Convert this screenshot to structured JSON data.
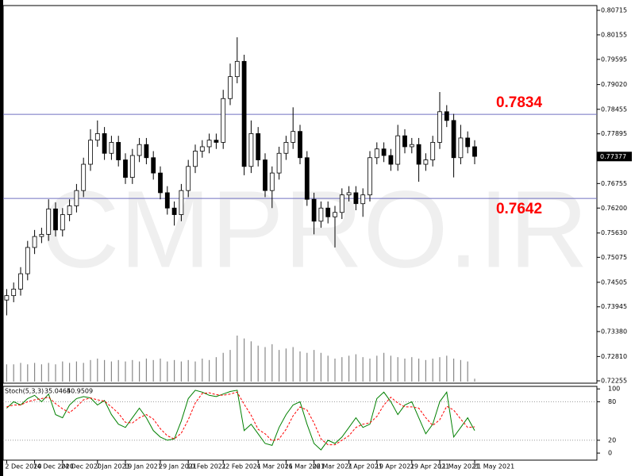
{
  "chart_data": [
    {
      "type": "candlestick",
      "watermark": "CMPRO.IR",
      "open": [
        0.741,
        0.742,
        0.7435,
        0.747,
        0.753,
        0.7555,
        0.756,
        0.7618,
        0.757,
        0.7605,
        0.7625,
        0.766,
        0.772,
        0.7775,
        0.779,
        0.7745,
        0.777,
        0.773,
        0.769,
        0.774,
        0.7765,
        0.7735,
        0.77,
        0.7655,
        0.762,
        0.7605,
        0.766,
        0.7715,
        0.775,
        0.776,
        0.7775,
        0.777,
        0.787,
        0.792,
        0.7955,
        0.7715,
        0.779,
        0.773,
        0.766,
        0.77,
        0.7745,
        0.777,
        0.7795,
        0.7735,
        0.764,
        0.759,
        0.762,
        0.76,
        0.761,
        0.765,
        0.7655,
        0.763,
        0.765,
        0.7735,
        0.7755,
        0.774,
        0.772,
        0.7785,
        0.776,
        0.7765,
        0.772,
        0.773,
        0.777,
        0.784,
        0.782,
        0.7735,
        0.778,
        0.776
      ],
      "high": [
        0.7435,
        0.745,
        0.7485,
        0.7545,
        0.757,
        0.7575,
        0.764,
        0.7633,
        0.762,
        0.764,
        0.7675,
        0.7735,
        0.78,
        0.782,
        0.7805,
        0.7785,
        0.7785,
        0.7745,
        0.7755,
        0.778,
        0.778,
        0.775,
        0.7715,
        0.767,
        0.7635,
        0.7675,
        0.773,
        0.7765,
        0.7775,
        0.779,
        0.779,
        0.789,
        0.795,
        0.801,
        0.797,
        0.782,
        0.7805,
        0.7745,
        0.7715,
        0.776,
        0.7785,
        0.785,
        0.781,
        0.775,
        0.7655,
        0.7635,
        0.7635,
        0.7625,
        0.7665,
        0.767,
        0.767,
        0.7665,
        0.775,
        0.777,
        0.777,
        0.7755,
        0.781,
        0.78,
        0.778,
        0.778,
        0.7745,
        0.7785,
        0.7885,
        0.7855,
        0.7835,
        0.781,
        0.7795,
        0.7775
      ],
      "low": [
        0.7375,
        0.7405,
        0.742,
        0.7455,
        0.7515,
        0.754,
        0.7545,
        0.7555,
        0.7555,
        0.759,
        0.761,
        0.7645,
        0.7705,
        0.776,
        0.773,
        0.773,
        0.7715,
        0.7675,
        0.7675,
        0.7725,
        0.772,
        0.7685,
        0.764,
        0.7605,
        0.758,
        0.759,
        0.7645,
        0.77,
        0.7735,
        0.7745,
        0.7755,
        0.7755,
        0.7855,
        0.7905,
        0.7695,
        0.77,
        0.7715,
        0.7645,
        0.762,
        0.7685,
        0.773,
        0.7755,
        0.772,
        0.7625,
        0.756,
        0.7575,
        0.7585,
        0.753,
        0.7595,
        0.7635,
        0.7615,
        0.76,
        0.7635,
        0.772,
        0.7725,
        0.7705,
        0.7705,
        0.7745,
        0.7745,
        0.768,
        0.7705,
        0.7715,
        0.7755,
        0.7805,
        0.769,
        0.772,
        0.7745,
        0.772
      ],
      "close": [
        0.742,
        0.7435,
        0.747,
        0.753,
        0.7555,
        0.756,
        0.7618,
        0.757,
        0.7605,
        0.7625,
        0.766,
        0.772,
        0.7775,
        0.779,
        0.7745,
        0.777,
        0.773,
        0.769,
        0.774,
        0.7765,
        0.7735,
        0.77,
        0.7655,
        0.762,
        0.7605,
        0.766,
        0.7715,
        0.775,
        0.776,
        0.7775,
        0.777,
        0.787,
        0.792,
        0.7955,
        0.7715,
        0.779,
        0.773,
        0.766,
        0.77,
        0.7745,
        0.777,
        0.7795,
        0.7735,
        0.764,
        0.759,
        0.762,
        0.76,
        0.761,
        0.765,
        0.7655,
        0.763,
        0.765,
        0.7735,
        0.7755,
        0.774,
        0.772,
        0.7785,
        0.776,
        0.7765,
        0.772,
        0.773,
        0.777,
        0.784,
        0.782,
        0.7735,
        0.778,
        0.776,
        0.7738
      ],
      "volume": [
        12,
        12,
        13,
        12,
        13,
        12,
        13,
        12,
        14,
        13,
        14,
        13,
        15,
        16,
        15,
        14,
        15,
        14,
        15,
        14,
        16,
        15,
        16,
        14,
        15,
        14,
        15,
        14,
        16,
        15,
        17,
        20,
        22,
        32,
        30,
        28,
        25,
        24,
        26,
        22,
        23,
        24,
        21,
        20,
        22,
        20,
        18,
        16,
        17,
        18,
        19,
        17,
        16,
        18,
        20,
        18,
        17,
        16,
        17,
        16,
        15,
        16,
        17,
        18,
        16,
        15,
        14,
        2
      ],
      "xlim": [
        -0.5,
        84.5
      ],
      "xticks": [
        {
          "value": 0,
          "label": "2 Dec 2020"
        },
        {
          "value": 4,
          "label": "14 Dec 2020"
        },
        {
          "value": 8,
          "label": "24 Dec 2020"
        },
        {
          "value": 13,
          "label": "7 Jan 2021"
        },
        {
          "value": 17,
          "label": "19 Jan 2021"
        },
        {
          "value": 22,
          "label": "29 Jan 2021"
        },
        {
          "value": 26,
          "label": "10 Feb 2021"
        },
        {
          "value": 31,
          "label": "22 Feb 2021"
        },
        {
          "value": 36,
          "label": "4 Mar 2021"
        },
        {
          "value": 40,
          "label": "16 Mar 2021"
        },
        {
          "value": 44,
          "label": "26 Mar 2021"
        },
        {
          "value": 49,
          "label": "7 Apr 2021"
        },
        {
          "value": 53,
          "label": "19 Apr 2021"
        },
        {
          "value": 58,
          "label": "29 Apr 2021"
        },
        {
          "value": 62,
          "label": "11 May 2021"
        },
        {
          "value": 67,
          "label": "21 May 2021"
        }
      ],
      "ylim": [
        0.72201,
        0.80824
      ],
      "yticks": [
        0.80715,
        0.80155,
        0.79595,
        {
          "value": 0.7902,
          "label": "0.79020"
        },
        0.78455,
        0.77895,
        {
          "value": 0.7676,
          "label": "0.76755"
        },
        {
          "value": 0.762,
          "label": "0.76200"
        },
        {
          "value": 0.7563,
          "label": "0.75630"
        },
        0.75075,
        0.74505,
        0.73945,
        {
          "value": 0.7338,
          "label": "0.73380"
        },
        {
          "value": 0.7281,
          "label": "0.72810"
        },
        0.72255
      ],
      "hlines": [
        0.7834,
        0.7642
      ],
      "hline_color": "#7070c0",
      "hline_label_color": "#ff0000",
      "current_price": 0.77377
    },
    {
      "type": "line",
      "title": "Stoch(5,3,3)",
      "series": [
        {
          "color": "#008000",
          "values": [
            70,
            80,
            75,
            85,
            90,
            80,
            92,
            60,
            55,
            75,
            85,
            88,
            86,
            75,
            82,
            60,
            45,
            40,
            55,
            70,
            55,
            35,
            25,
            20,
            22,
            50,
            85,
            98,
            95,
            90,
            88,
            92,
            96,
            98,
            35,
            45,
            30,
            15,
            12,
            40,
            60,
            75,
            80,
            45,
            15,
            5,
            20,
            15,
            25,
            40,
            55,
            40,
            45,
            85,
            95,
            80,
            60,
            75,
            80,
            55,
            30,
            45,
            80,
            95,
            25,
            40,
            55,
            35.0465
          ]
        },
        {
          "color": "#ff0000",
          "dashed": true,
          "values": [
            72,
            75,
            75,
            80,
            83,
            85,
            87,
            77,
            69,
            63,
            72,
            83,
            86,
            83,
            81,
            72,
            62,
            48,
            47,
            55,
            60,
            53,
            38,
            27,
            22,
            31,
            52,
            78,
            93,
            94,
            91,
            90,
            92,
            95,
            76,
            59,
            37,
            30,
            19,
            22,
            37,
            58,
            72,
            67,
            47,
            22,
            13,
            13,
            20,
            27,
            40,
            45,
            47,
            57,
            75,
            87,
            78,
            72,
            72,
            70,
            55,
            43,
            52,
            73,
            67,
            53,
            40,
            40.9509
          ]
        }
      ],
      "ylim": [
        -11,
        104
      ],
      "yticks": [
        100,
        80,
        20,
        0
      ],
      "levels": [
        80,
        20
      ]
    }
  ]
}
